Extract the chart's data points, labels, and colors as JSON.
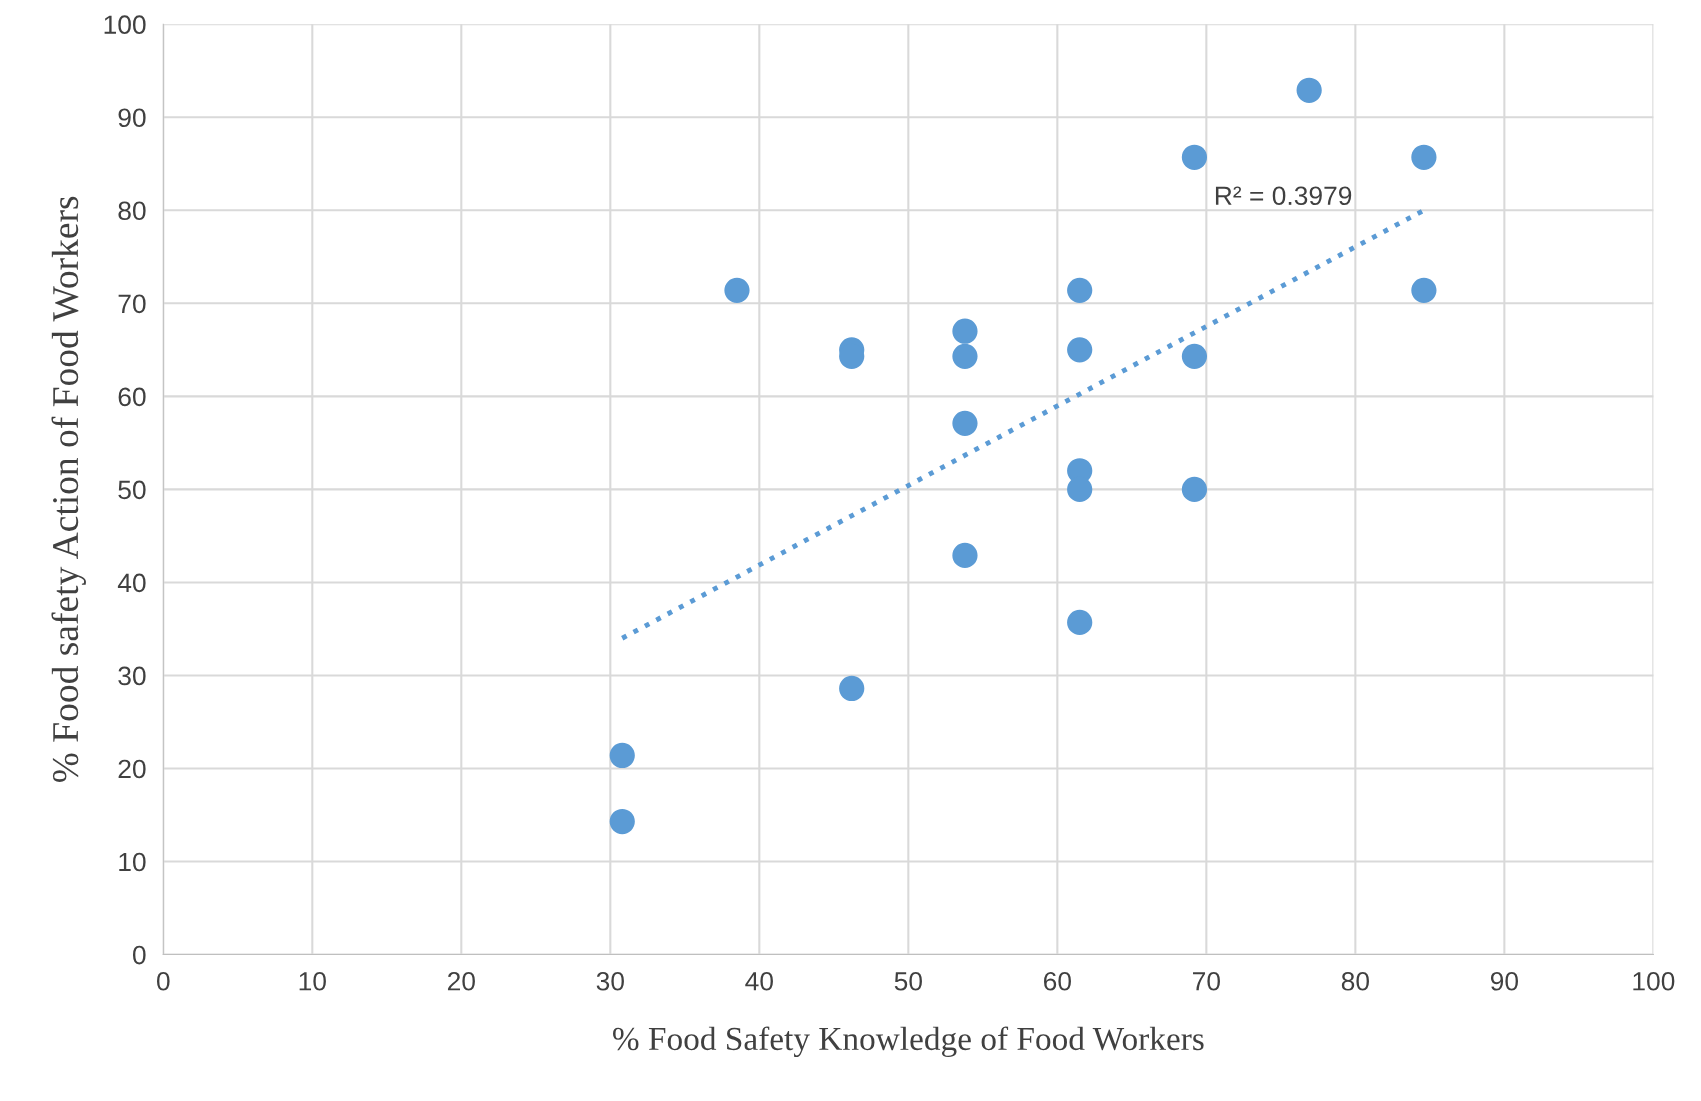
{
  "chart_data": {
    "type": "scatter",
    "xlabel": "% Food Safety Knowledge of Food Workers",
    "ylabel": "% Food safety Action of Food Workers",
    "xlim": [
      0,
      100
    ],
    "ylim": [
      0,
      100
    ],
    "xticks": [
      0,
      10,
      20,
      30,
      40,
      50,
      60,
      70,
      80,
      90,
      100
    ],
    "yticks": [
      0,
      10,
      20,
      30,
      40,
      50,
      60,
      70,
      80,
      90,
      100
    ],
    "grid": true,
    "marker": "circle",
    "annotations": [
      "R² = 0.3979"
    ],
    "series": [
      {
        "color": "#5b9bd5",
        "x": [
          30.8,
          30.8,
          38.5,
          46.2,
          46.2,
          46.2,
          53.8,
          53.8,
          53.8,
          53.8,
          61.5,
          61.5,
          61.5,
          61.5,
          61.5,
          69.2,
          69.2,
          69.2,
          76.9,
          84.6,
          84.6
        ],
        "values": [
          21.4,
          14.3,
          71.4,
          65,
          64.3,
          28.6,
          67,
          64.3,
          57.1,
          42.9,
          71.4,
          65,
          52,
          50,
          35.7,
          85.7,
          64.3,
          50,
          92.9,
          85.7,
          71.4
        ]
      },
      {
        "type": "line",
        "color": "#5b9bd5",
        "line_style": "dotted",
        "marker": "none",
        "x": [
          30.8,
          84.6
        ],
        "values": [
          34,
          80
        ]
      }
    ]
  }
}
